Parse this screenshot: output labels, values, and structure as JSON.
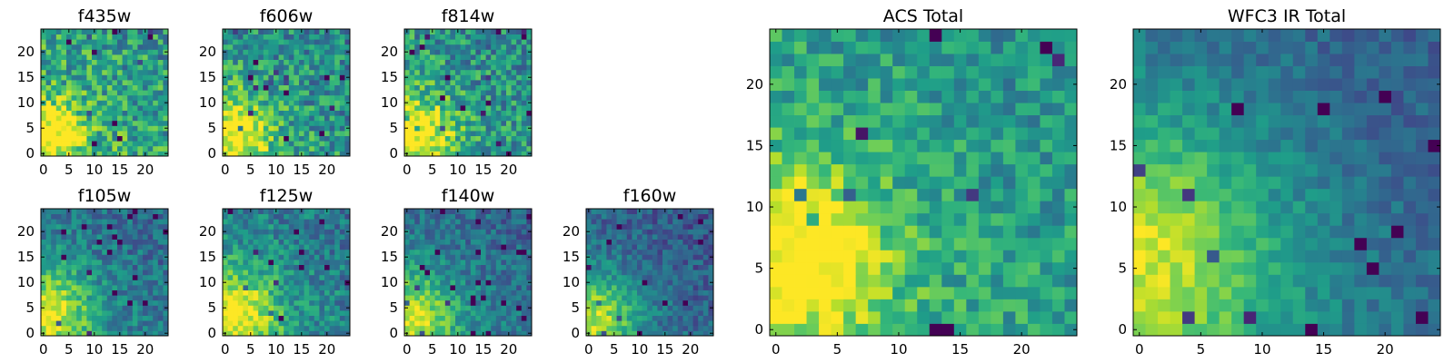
{
  "figure": {
    "description": "Grid of per-filter 25x25 pixel cutout images with viridis colormap, plus two larger total-band cutouts"
  },
  "colors": {
    "viridis": [
      "#440154",
      "#482878",
      "#3e4a89",
      "#31688e",
      "#26828e",
      "#1f9e89",
      "#35b779",
      "#6ece58",
      "#b5de2b",
      "#fde725"
    ]
  },
  "chart_data": [
    {
      "type": "heatmap",
      "id": "f435w",
      "title": "f435w",
      "grid": [
        25,
        25
      ],
      "xlim": [
        -0.5,
        24.5
      ],
      "ylim": [
        -0.5,
        24.5
      ],
      "xticks": [
        0,
        5,
        10,
        15,
        20
      ],
      "yticks": [
        0,
        5,
        10,
        15,
        20
      ],
      "colormap": "viridis",
      "origin": "lower",
      "bright_center": [
        2,
        4
      ],
      "bright_radius": 4,
      "base": 0.68,
      "noise": 0.5,
      "seed": 11
    },
    {
      "type": "heatmap",
      "id": "f606w",
      "title": "f606w",
      "grid": [
        25,
        25
      ],
      "xlim": [
        -0.5,
        24.5
      ],
      "ylim": [
        -0.5,
        24.5
      ],
      "xticks": [
        0,
        5,
        10,
        15,
        20
      ],
      "yticks": [
        0,
        5,
        10,
        15,
        20
      ],
      "colormap": "viridis",
      "origin": "lower",
      "bright_center": [
        2,
        4
      ],
      "bright_radius": 5,
      "base": 0.62,
      "noise": 0.48,
      "seed": 23
    },
    {
      "type": "heatmap",
      "id": "f814w",
      "title": "f814w",
      "grid": [
        25,
        25
      ],
      "xlim": [
        -0.5,
        24.5
      ],
      "ylim": [
        -0.5,
        24.5
      ],
      "xticks": [
        0,
        5,
        10,
        15,
        20
      ],
      "yticks": [
        0,
        5,
        10,
        15,
        20
      ],
      "colormap": "viridis",
      "origin": "lower",
      "bright_center": [
        2,
        4
      ],
      "bright_radius": 5,
      "base": 0.62,
      "noise": 0.48,
      "seed": 37
    },
    {
      "type": "heatmap",
      "id": "f105w",
      "title": "f105w",
      "grid": [
        25,
        25
      ],
      "xlim": [
        -0.5,
        24.5
      ],
      "ylim": [
        -0.5,
        24.5
      ],
      "xticks": [
        0,
        5,
        10,
        15,
        20
      ],
      "yticks": [
        0,
        5,
        10,
        15,
        20
      ],
      "colormap": "viridis",
      "origin": "lower",
      "bright_center": [
        1,
        4
      ],
      "bright_radius": 6,
      "base": 0.5,
      "noise": 0.32,
      "seed": 41
    },
    {
      "type": "heatmap",
      "id": "f125w",
      "title": "f125w",
      "grid": [
        25,
        25
      ],
      "xlim": [
        -0.5,
        24.5
      ],
      "ylim": [
        -0.5,
        24.5
      ],
      "xticks": [
        0,
        5,
        10,
        15,
        20
      ],
      "yticks": [
        0,
        5,
        10,
        15,
        20
      ],
      "colormap": "viridis",
      "origin": "lower",
      "bright_center": [
        2,
        4
      ],
      "bright_radius": 6,
      "base": 0.55,
      "noise": 0.35,
      "seed": 53
    },
    {
      "type": "heatmap",
      "id": "f140w",
      "title": "f140w",
      "grid": [
        25,
        25
      ],
      "xlim": [
        -0.5,
        24.5
      ],
      "ylim": [
        -0.5,
        24.5
      ],
      "xticks": [
        0,
        5,
        10,
        15,
        20
      ],
      "yticks": [
        0,
        5,
        10,
        15,
        20
      ],
      "colormap": "viridis",
      "origin": "lower",
      "bright_center": [
        1,
        3
      ],
      "bright_radius": 6,
      "base": 0.48,
      "noise": 0.3,
      "seed": 67
    },
    {
      "type": "heatmap",
      "id": "f160w",
      "title": "f160w",
      "grid": [
        25,
        25
      ],
      "xlim": [
        -0.5,
        24.5
      ],
      "ylim": [
        -0.5,
        24.5
      ],
      "xticks": [
        0,
        5,
        10,
        15,
        20
      ],
      "yticks": [
        0,
        5,
        10,
        15,
        20
      ],
      "colormap": "viridis",
      "origin": "lower",
      "bright_center": [
        1,
        3
      ],
      "bright_radius": 6,
      "base": 0.42,
      "noise": 0.28,
      "seed": 79
    },
    {
      "type": "heatmap",
      "id": "acs-total",
      "title": "ACS Total",
      "grid": [
        25,
        25
      ],
      "xlim": [
        -0.5,
        24.5
      ],
      "ylim": [
        -0.5,
        24.5
      ],
      "xticks": [
        0,
        5,
        10,
        15,
        20
      ],
      "yticks": [
        0,
        5,
        10,
        15,
        20
      ],
      "colormap": "viridis",
      "origin": "lower",
      "bright_center": [
        2,
        6
      ],
      "bright_radius": 5,
      "base": 0.66,
      "noise": 0.34,
      "seed": 97
    },
    {
      "type": "heatmap",
      "id": "wfc3-ir-total",
      "title": "WFC3 IR Total",
      "grid": [
        25,
        25
      ],
      "xlim": [
        -0.5,
        24.5
      ],
      "ylim": [
        -0.5,
        24.5
      ],
      "xticks": [
        0,
        5,
        10,
        15,
        20
      ],
      "yticks": [
        0,
        5,
        10,
        15,
        20
      ],
      "colormap": "viridis",
      "origin": "lower",
      "bright_center": [
        0,
        6
      ],
      "bright_radius": 8,
      "base": 0.46,
      "noise": 0.2,
      "seed": 131
    }
  ]
}
